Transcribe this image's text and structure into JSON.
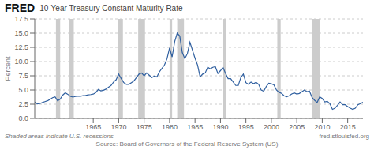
{
  "chart_data": {
    "type": "line",
    "brand": "FRED",
    "title": "10-Year Treasury Constant Maturity Rate",
    "ylabel": "Percent",
    "notes": [
      "Shaded areas indicate U.S. recessions",
      "Source: Board of Governors of the Federal Reserve System (US)",
      "fred.stlouisfed.org"
    ],
    "xlim": [
      1953.5,
      2018
    ],
    "ylim": [
      0,
      17.5
    ],
    "xticks": [
      1965,
      1970,
      1975,
      1980,
      1985,
      1990,
      1995,
      2000,
      2005,
      2010,
      2015
    ],
    "yticks": [
      {
        "value": 0,
        "label": "0.0"
      },
      2.5,
      {
        "value": 5,
        "label": "5.0"
      },
      7.5,
      {
        "value": 10,
        "label": "10.0"
      },
      12.5,
      {
        "value": 15,
        "label": "15.0"
      },
      17.5
    ],
    "grid": true,
    "recessions": {
      "color": "#cccccc",
      "spans": [
        [
          1957.67,
          1958.5
        ],
        [
          1960.25,
          1961.17
        ],
        [
          1969.92,
          1970.83
        ],
        [
          1973.83,
          1975.17
        ],
        [
          1980.0,
          1980.5
        ],
        [
          1981.5,
          1982.83
        ],
        [
          1990.5,
          1991.17
        ],
        [
          2001.17,
          2001.83
        ],
        [
          2007.92,
          2009.5
        ]
      ]
    },
    "x": [
      1953.5,
      1954.0,
      1954.5,
      1955.0,
      1955.5,
      1956.0,
      1956.5,
      1957.0,
      1957.5,
      1958.0,
      1958.5,
      1959.0,
      1959.5,
      1960.0,
      1960.5,
      1961.0,
      1961.5,
      1962.0,
      1962.5,
      1963.0,
      1963.5,
      1964.0,
      1964.5,
      1965.0,
      1965.5,
      1966.0,
      1966.5,
      1967.0,
      1967.5,
      1968.0,
      1968.5,
      1969.0,
      1969.5,
      1970.0,
      1970.5,
      1971.0,
      1971.5,
      1972.0,
      1972.5,
      1973.0,
      1973.5,
      1974.0,
      1974.5,
      1975.0,
      1975.5,
      1976.0,
      1976.5,
      1977.0,
      1977.5,
      1978.0,
      1978.5,
      1979.0,
      1979.5,
      1980.0,
      1980.5,
      1981.0,
      1981.5,
      1982.0,
      1982.5,
      1983.0,
      1983.5,
      1984.0,
      1984.5,
      1985.0,
      1985.5,
      1986.0,
      1986.5,
      1987.0,
      1987.5,
      1988.0,
      1988.5,
      1989.0,
      1989.5,
      1990.0,
      1990.5,
      1991.0,
      1991.5,
      1992.0,
      1992.5,
      1993.0,
      1993.5,
      1994.0,
      1994.5,
      1995.0,
      1995.5,
      1996.0,
      1996.5,
      1997.0,
      1997.5,
      1998.0,
      1998.5,
      1999.0,
      1999.5,
      2000.0,
      2000.5,
      2001.0,
      2001.5,
      2002.0,
      2002.5,
      2003.0,
      2003.5,
      2004.0,
      2004.5,
      2005.0,
      2005.5,
      2006.0,
      2006.5,
      2007.0,
      2007.5,
      2008.0,
      2008.5,
      2009.0,
      2009.5,
      2010.0,
      2010.5,
      2011.0,
      2011.5,
      2012.0,
      2012.5,
      2013.0,
      2013.5,
      2014.0,
      2014.5,
      2015.0,
      2015.5,
      2016.0,
      2016.5,
      2017.0,
      2017.5,
      2018.0
    ],
    "series": [
      {
        "name": "10-Year Treasury Constant Maturity Rate",
        "color": "#3060a0",
        "values": [
          2.87,
          2.55,
          2.6,
          2.8,
          2.95,
          3.1,
          3.35,
          3.65,
          3.8,
          3.1,
          3.4,
          4.1,
          4.5,
          4.25,
          3.9,
          3.75,
          3.85,
          3.95,
          3.9,
          4.0,
          4.05,
          4.15,
          4.2,
          4.28,
          4.55,
          5.1,
          4.85,
          4.95,
          5.15,
          5.5,
          5.8,
          6.4,
          6.8,
          7.8,
          7.0,
          6.3,
          6.0,
          6.0,
          6.3,
          6.6,
          7.2,
          7.8,
          8.0,
          7.5,
          8.0,
          7.6,
          7.2,
          7.45,
          7.3,
          8.2,
          8.8,
          9.4,
          10.5,
          12.4,
          10.8,
          13.5,
          15.0,
          14.5,
          11.6,
          10.5,
          11.4,
          13.4,
          12.0,
          10.6,
          9.4,
          7.3,
          7.8,
          8.0,
          9.0,
          8.7,
          9.0,
          9.1,
          7.9,
          8.4,
          9.0,
          7.9,
          7.0,
          7.0,
          6.4,
          5.8,
          5.8,
          7.2,
          7.8,
          6.3,
          6.0,
          6.4,
          6.1,
          6.35,
          6.0,
          5.0,
          4.8,
          5.6,
          6.2,
          6.1,
          5.9,
          5.0,
          4.6,
          4.4,
          4.0,
          3.8,
          4.0,
          4.3,
          4.5,
          4.3,
          4.4,
          4.7,
          5.0,
          4.7,
          4.8,
          3.7,
          3.2,
          2.8,
          3.8,
          3.5,
          2.9,
          3.0,
          2.6,
          1.6,
          1.8,
          2.3,
          2.9,
          2.4,
          2.4,
          2.1,
          1.8,
          1.6,
          1.8,
          2.4,
          2.6,
          2.85
        ]
      }
    ]
  }
}
